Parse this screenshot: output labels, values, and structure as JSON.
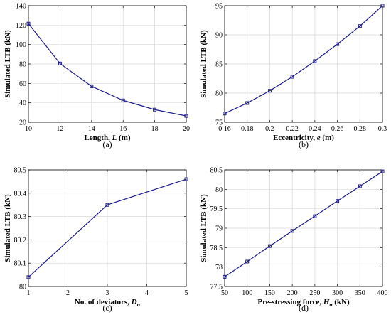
{
  "chart_data": [
    {
      "type": "line",
      "panel_label": "(a)",
      "xlabel": "Length, ",
      "xlabel_symbol": "L",
      "xlabel_unit": " (m)",
      "ylabel": "Simulated LTB (kN)",
      "xlim": [
        10,
        20
      ],
      "ylim": [
        20,
        140
      ],
      "xticks": [
        10,
        12,
        14,
        16,
        18,
        20
      ],
      "yticks": [
        20,
        40,
        60,
        80,
        100,
        120,
        140
      ],
      "xtick_labels": [
        "10",
        "12",
        "14",
        "16",
        "18",
        "20"
      ],
      "ytick_labels": [
        "20",
        "40",
        "60",
        "80",
        "100",
        "120",
        "140"
      ],
      "grid": true,
      "color": "#1c1c8c",
      "marker": "square",
      "x": [
        10,
        12,
        14,
        16,
        18,
        20
      ],
      "y": [
        121.5,
        80.5,
        57,
        42.5,
        33,
        26.5
      ]
    },
    {
      "type": "line",
      "panel_label": "(b)",
      "xlabel": "Eccentricity, ",
      "xlabel_symbol": "e",
      "xlabel_unit": " (m)",
      "ylabel": "Simulated LTB (kN)",
      "xlim": [
        0.16,
        0.3
      ],
      "ylim": [
        75,
        95
      ],
      "xticks": [
        0.16,
        0.18,
        0.2,
        0.22,
        0.24,
        0.26,
        0.28,
        0.3
      ],
      "yticks": [
        75,
        80,
        85,
        90,
        95
      ],
      "xtick_labels": [
        "0.16",
        "0.18",
        "0.2",
        "0.22",
        "0.24",
        "0.26",
        "0.28",
        "0.3"
      ],
      "ytick_labels": [
        "75",
        "80",
        "85",
        "90",
        "95"
      ],
      "grid": true,
      "color": "#1c1c8c",
      "marker": "square",
      "x": [
        0.16,
        0.18,
        0.2,
        0.22,
        0.24,
        0.26,
        0.28,
        0.3
      ],
      "y": [
        76.5,
        78.3,
        80.4,
        82.8,
        85.5,
        88.4,
        91.5,
        95
      ]
    },
    {
      "type": "line",
      "panel_label": "(c)",
      "xlabel": "No. of deviators, ",
      "xlabel_symbol": "D",
      "xlabel_subscript": "n",
      "xlabel_unit": "",
      "ylabel": "Simulated LTB (kN)",
      "xlim": [
        1,
        5
      ],
      "ylim": [
        80,
        80.5
      ],
      "xticks": [
        1,
        2,
        3,
        4,
        5
      ],
      "yticks": [
        80,
        80.1,
        80.2,
        80.3,
        80.4,
        80.5
      ],
      "xtick_labels": [
        "1",
        "2",
        "3",
        "4",
        "5"
      ],
      "ytick_labels": [
        "80",
        "80.1",
        "80.2",
        "80.3",
        "80.4",
        "80.5"
      ],
      "grid": true,
      "color": "#1c1c8c",
      "marker": "square",
      "x": [
        1,
        3,
        5
      ],
      "y": [
        80.04,
        80.35,
        80.46
      ]
    },
    {
      "type": "line",
      "panel_label": "(d)",
      "xlabel": "Pre-stressing force, ",
      "xlabel_symbol": "H",
      "xlabel_subscript": "o",
      "xlabel_unit": " (kN)",
      "ylabel": "Simulated LTB (kN)",
      "xlim": [
        50,
        400
      ],
      "ylim": [
        77.5,
        80.5
      ],
      "xticks": [
        50,
        100,
        150,
        200,
        250,
        300,
        350,
        400
      ],
      "yticks": [
        77.5,
        78,
        78.5,
        79,
        79.5,
        80,
        80.5
      ],
      "xtick_labels": [
        "50",
        "100",
        "150",
        "200",
        "250",
        "300",
        "350",
        "400"
      ],
      "ytick_labels": [
        "77.5",
        "78",
        "78.5",
        "79",
        "79.5",
        "80",
        "80.5"
      ],
      "grid": true,
      "color": "#1c1c8c",
      "marker": "square",
      "x": [
        50,
        100,
        150,
        200,
        250,
        300,
        350,
        400
      ],
      "y": [
        77.75,
        78.14,
        78.54,
        78.93,
        79.31,
        79.7,
        80.08,
        80.46
      ]
    }
  ]
}
